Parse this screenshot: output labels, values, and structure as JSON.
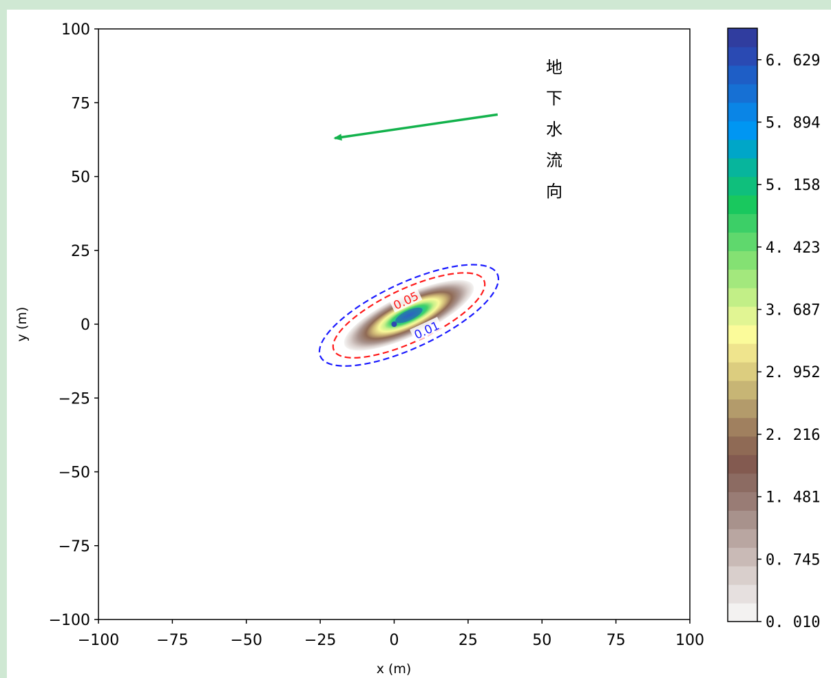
{
  "chart_data": {
    "type": "contour",
    "xlabel": "x (m)",
    "ylabel": "y (m)",
    "xlim": [
      -100,
      100
    ],
    "ylim": [
      -100,
      100
    ],
    "x_ticks": [
      "−100",
      "−75",
      "−50",
      "−25",
      "0",
      "25",
      "50",
      "75",
      "100"
    ],
    "x_tick_values": [
      -100,
      -75,
      -50,
      -25,
      0,
      25,
      50,
      75,
      100
    ],
    "y_ticks": [
      "100",
      "75",
      "50",
      "25",
      "0",
      "−25",
      "−50",
      "−75",
      "−100"
    ],
    "y_tick_values": [
      100,
      75,
      50,
      25,
      0,
      -25,
      -50,
      -75,
      -100
    ],
    "grid": false,
    "plume": {
      "center": [
        5,
        3
      ],
      "orientation_deg": 25,
      "source_point": [
        0,
        0
      ],
      "max_value": 7.0,
      "filled_extent_semi_axes": [
        24,
        7
      ]
    },
    "contour_lines": [
      {
        "level": "0.05",
        "color": "#ff1a1a",
        "style": "dashed",
        "semi_axes": [
          28,
          9
        ],
        "label_at": [
          4,
          8
        ]
      },
      {
        "level": "0.01",
        "color": "#1a1aff",
        "style": "dashed",
        "semi_axes": [
          33,
          11
        ],
        "label_at": [
          11,
          -2
        ]
      }
    ],
    "colorbar": {
      "min": 0.01,
      "max": 7.0,
      "ticks": [
        {
          "label": "0. 010",
          "value": 0.01
        },
        {
          "label": "0. 745",
          "value": 0.745
        },
        {
          "label": "1. 481",
          "value": 1.481
        },
        {
          "label": "2. 216",
          "value": 2.216
        },
        {
          "label": "2. 952",
          "value": 2.952
        },
        {
          "label": "3. 687",
          "value": 3.687
        },
        {
          "label": "4. 423",
          "value": 4.423
        },
        {
          "label": "5. 158",
          "value": 5.158
        },
        {
          "label": "5. 894",
          "value": 5.894
        },
        {
          "label": "6. 629",
          "value": 6.629
        }
      ],
      "colors": [
        "#f3f2f1",
        "#e6e0df",
        "#d9cfcc",
        "#c9bab6",
        "#b9a6a1",
        "#a8928c",
        "#997c75",
        "#8c6b62",
        "#835a50",
        "#8f6a55",
        "#a0805f",
        "#b39b6b",
        "#c7b575",
        "#dccd7f",
        "#efe48d",
        "#fbfb9a",
        "#e1f593",
        "#c2ef87",
        "#a3e87d",
        "#84e173",
        "#5fd86d",
        "#3ccf67",
        "#19c85e",
        "#0fbf7c",
        "#07b59c",
        "#00a6c8",
        "#0096f2",
        "#0a85e6",
        "#1670d4",
        "#1e5ec6",
        "#2a4ab3",
        "#303d9f"
      ]
    },
    "annotation": {
      "text_chars": [
        "地",
        "下",
        "水",
        "流",
        "向"
      ],
      "arrow_from": [
        35,
        71
      ],
      "arrow_to": [
        -21,
        63
      ],
      "arrow_color": "#13b24c"
    }
  }
}
